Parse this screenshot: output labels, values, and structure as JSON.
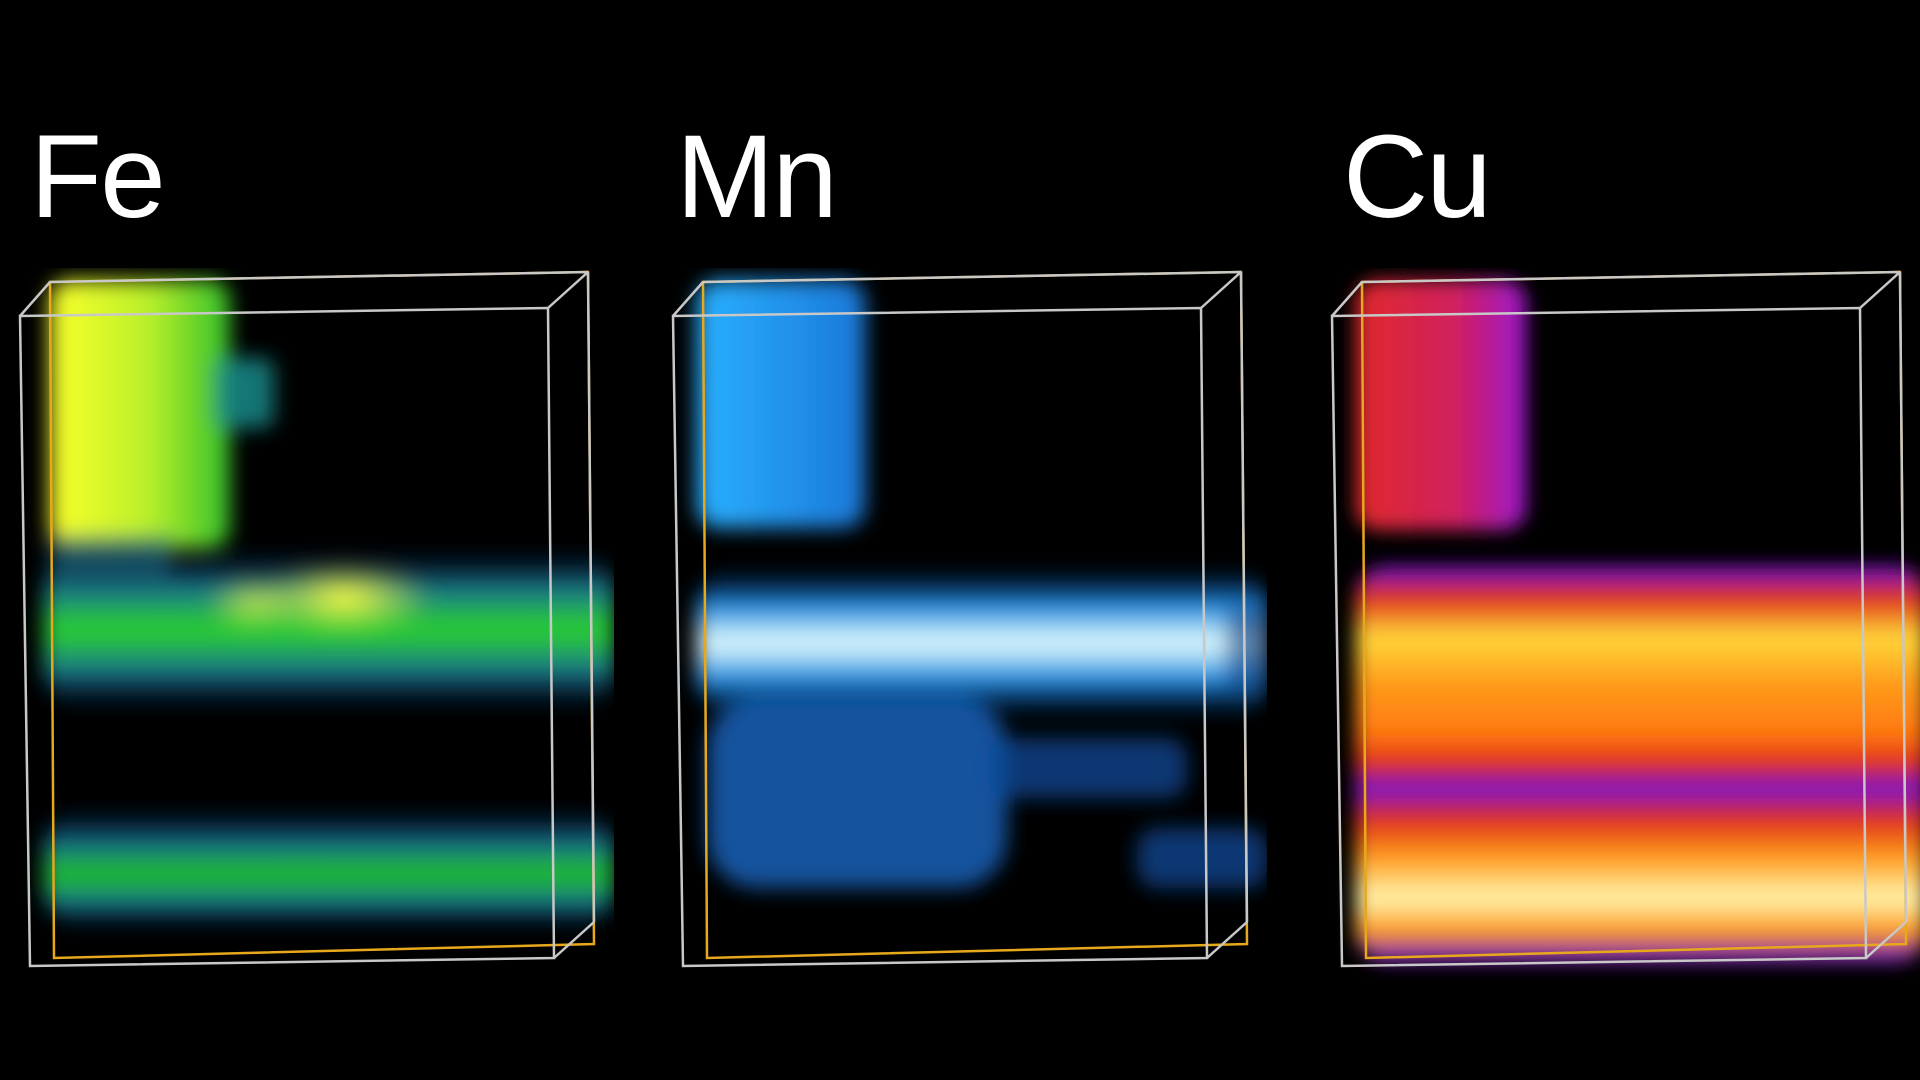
{
  "panels": [
    {
      "id": "fe",
      "element": "Fe",
      "colormap": "green-yellow",
      "colors": {
        "low": "#0a2a6b",
        "mid": "#1fbf2a",
        "high": "#ffff2a"
      }
    },
    {
      "id": "mn",
      "element": "Mn",
      "colormap": "blue-cyan",
      "colors": {
        "low": "#0a3a8a",
        "mid": "#1fa6ff",
        "high": "#eaffff"
      }
    },
    {
      "id": "cu",
      "element": "Cu",
      "colormap": "fire",
      "colors": {
        "low": "#6a10d8",
        "mid": "#e0301a",
        "high": "#fff6b0"
      }
    }
  ],
  "box_colors": {
    "front": "#c8c8c8",
    "back": "#e8a81c"
  }
}
